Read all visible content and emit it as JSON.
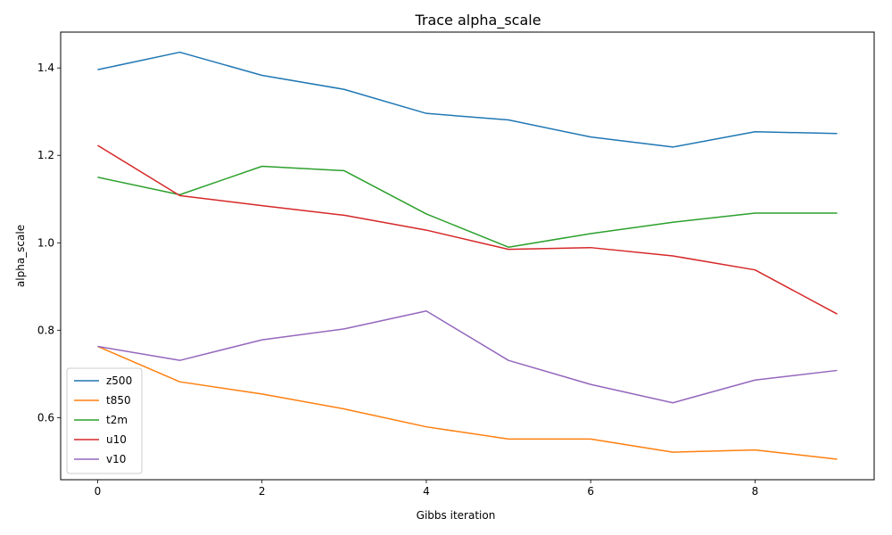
{
  "chart_data": {
    "type": "line",
    "title": "Trace alpha_scale",
    "xlabel": "Gibbs iteration",
    "ylabel": "alpha_scale",
    "x": [
      0,
      1,
      2,
      3,
      4,
      5,
      6,
      7,
      8,
      9
    ],
    "xlim": [
      -0.45,
      9.45
    ],
    "ylim": [
      0.458,
      1.482
    ],
    "x_ticks": [
      0,
      2,
      4,
      6,
      8
    ],
    "y_ticks": [
      0.6,
      0.8,
      1.0,
      1.2,
      1.4
    ],
    "y_tick_labels": [
      "0.6",
      "0.8",
      "1.0",
      "1.2",
      "1.4"
    ],
    "grid": false,
    "legend_position": "lower-left",
    "series": [
      {
        "name": "z500",
        "color": "#1f77b4",
        "values": [
          1.396,
          1.436,
          1.383,
          1.351,
          1.296,
          1.281,
          1.242,
          1.219,
          1.254,
          1.25
        ]
      },
      {
        "name": "t850",
        "color": "#ff7f0e",
        "values": [
          0.763,
          0.682,
          0.654,
          0.62,
          0.579,
          0.551,
          0.551,
          0.521,
          0.526,
          0.505
        ]
      },
      {
        "name": "t2m",
        "color": "#2ca02c",
        "values": [
          1.15,
          1.11,
          1.175,
          1.165,
          1.066,
          0.99,
          1.021,
          1.047,
          1.068,
          1.068
        ]
      },
      {
        "name": "u10",
        "color": "#d62728",
        "values": [
          1.223,
          1.108,
          1.085,
          1.063,
          1.029,
          0.985,
          0.989,
          0.97,
          0.938,
          0.837
        ]
      },
      {
        "name": "v10",
        "color": "#9467bd",
        "values": [
          0.763,
          0.731,
          0.778,
          0.803,
          0.844,
          0.731,
          0.676,
          0.634,
          0.686,
          0.708
        ]
      }
    ]
  }
}
